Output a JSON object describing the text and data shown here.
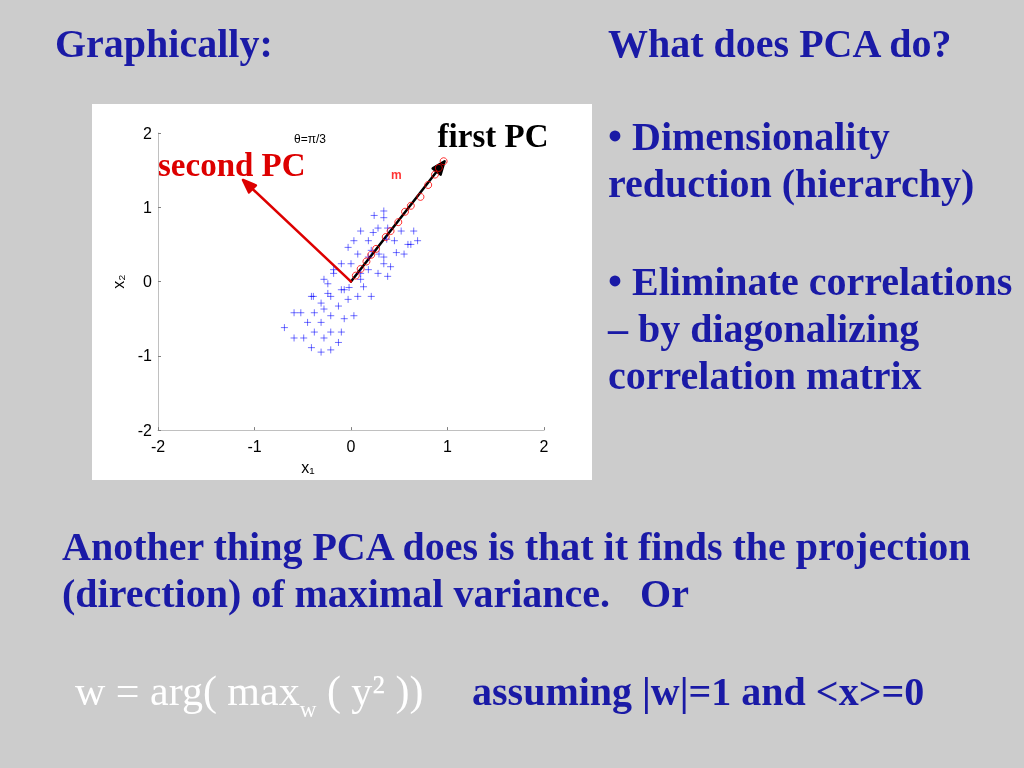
{
  "chart_data": {
    "type": "scatter",
    "title": "Graphically:",
    "xlabel": "x₁",
    "ylabel": "x₂",
    "xlim": [
      -2,
      2
    ],
    "ylim": [
      -2,
      2
    ],
    "xticks": [
      -2,
      -1,
      0,
      1,
      2
    ],
    "yticks": [
      -2,
      -1,
      0,
      1,
      2
    ],
    "annotations": [
      {
        "text": "first PC",
        "x": 0.97,
        "y": 1.62
      },
      "θ=π/3",
      {
        "text": "second PC",
        "x": 0,
        "y": 0
      },
      "What does PCA do?",
      "• Dimensionality reduction (hierarchy)",
      "• Eliminate correlations – by diagonalizing correlation matrix",
      "Another thing PCA does is that it finds the projection (direction) of maximal variance.   Or",
      "w = arg( max$_{w}$ ( y² ))",
      "assuming |w|=1 and <x>=0"
    ],
    "series": [
      {
        "color": "#0000ff",
        "marker": "cross",
        "x": [
          0.34,
          0.24,
          0.28,
          0.1,
          0.38,
          0.52,
          0.65,
          0.69,
          0.59,
          0.55,
          0.45,
          -0.03,
          0.03,
          0.18,
          0.21,
          0.34,
          0.41,
          0.38,
          0.28,
          0.18,
          0.1,
          0.21,
          0.07,
          0.0,
          -0.1,
          -0.18,
          -0.24,
          -0.1,
          -0.02,
          -0.21,
          -0.31,
          -0.13,
          -0.03,
          -0.41,
          -0.38,
          -0.52,
          -0.59,
          -0.45,
          -0.31,
          -0.21,
          -0.07,
          0.03,
          -0.69,
          -0.59,
          -0.49,
          -0.38,
          -0.28,
          -0.13,
          -0.21,
          -0.41,
          -0.31,
          -0.1,
          -0.21,
          -0.28,
          -0.39,
          -0.28,
          -0.07,
          0.34,
          0.07,
          0.18,
          0.34,
          0.1,
          -0.18,
          0.62,
          0.29,
          0.37,
          -0.24,
          0.13,
          0.47,
          0.23
        ],
        "values": [
          0.95,
          0.89,
          0.72,
          0.68,
          0.72,
          0.68,
          0.68,
          0.55,
          0.5,
          0.37,
          0.55,
          0.46,
          0.55,
          0.55,
          0.42,
          0.33,
          0.2,
          0.07,
          0.11,
          0.16,
          0.03,
          -0.2,
          -0.2,
          0.24,
          0.24,
          0.11,
          -0.03,
          -0.11,
          -0.08,
          -0.2,
          -0.29,
          -0.33,
          -0.24,
          -0.2,
          -0.42,
          -0.42,
          -0.42,
          -0.55,
          -0.55,
          -0.46,
          -0.5,
          -0.46,
          -0.62,
          -0.76,
          -0.76,
          -0.68,
          -0.76,
          -0.82,
          -0.68,
          -0.89,
          -0.95,
          -0.68,
          -0.92,
          -0.37,
          -0.2,
          0.03,
          -0.11,
          0.86,
          0.37,
          0.33,
          0.24,
          0.11,
          0.16,
          0.5,
          0.37,
          0.57,
          -0.16,
          -0.07,
          0.39,
          0.66
        ]
      },
      {
        "name": "m",
        "color": "#ff0000",
        "marker": "circle",
        "x": [
          0.05,
          0.1,
          0.16,
          0.21,
          0.26,
          0.36,
          0.41,
          0.49,
          0.56,
          0.62,
          0.72,
          0.8,
          0.87,
          0.91,
          0.96
        ],
        "values": [
          0.08,
          0.17,
          0.27,
          0.36,
          0.44,
          0.6,
          0.68,
          0.8,
          0.94,
          1.02,
          1.14,
          1.3,
          1.44,
          1.53,
          1.62
        ]
      }
    ]
  }
}
